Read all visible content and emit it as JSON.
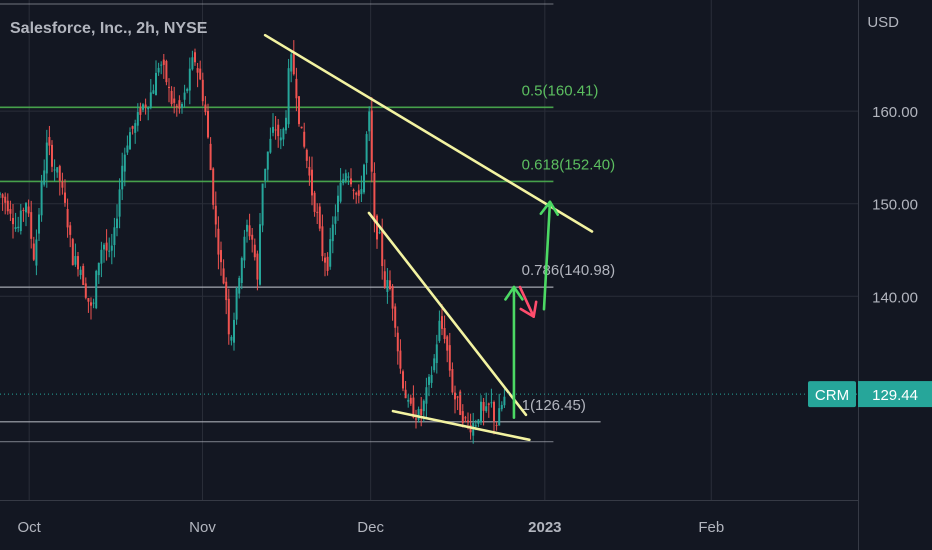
{
  "header": {
    "title": "Salesforce, Inc., 2h, NYSE",
    "currency": "USD"
  },
  "colors": {
    "background": "#131722",
    "grid": "#2a2e39",
    "up": "#26a69a",
    "down": "#ef5350",
    "fib_green": "#4caf50",
    "trend_yellow": "#f3f3a1",
    "arrow_green": "#4cd964",
    "arrow_red": "#ff4d6d"
  },
  "chart_data": {
    "type": "candlestick",
    "title": "Salesforce, Inc., 2h, NYSE",
    "ylim": [
      118,
      172
    ],
    "y_ticks": [
      140,
      150,
      160
    ],
    "y_tick_labels": [
      "140.00",
      "150.00",
      "160.00"
    ],
    "x_ticks": [
      {
        "label": "Oct",
        "pos": 0.034
      },
      {
        "label": "Nov",
        "pos": 0.236
      },
      {
        "label": "Dec",
        "pos": 0.432
      },
      {
        "label": "2023",
        "pos": 0.635
      },
      {
        "label": "Feb",
        "pos": 0.829
      }
    ],
    "last_price": {
      "symbol": "CRM",
      "value": "129.44"
    },
    "fib_levels": [
      {
        "label": "0.5(160.41)",
        "value": 160.41,
        "color": "#4caf50"
      },
      {
        "label": "0.618(152.40)",
        "value": 152.4,
        "color": "#4caf50"
      },
      {
        "label": "0.786(140.98)",
        "value": 140.98,
        "color": "#b2b5be"
      },
      {
        "label": "1(126.45)",
        "value": 126.45,
        "color": "#b2b5be"
      }
    ],
    "price_path": [
      [
        0.0,
        151.0
      ],
      [
        0.012,
        149.5
      ],
      [
        0.02,
        147.0
      ],
      [
        0.03,
        150.5
      ],
      [
        0.04,
        144.0
      ],
      [
        0.048,
        151.5
      ],
      [
        0.055,
        156.5
      ],
      [
        0.063,
        154.0
      ],
      [
        0.07,
        152.5
      ],
      [
        0.078,
        148.5
      ],
      [
        0.085,
        144.0
      ],
      [
        0.093,
        143.5
      ],
      [
        0.1,
        140.5
      ],
      [
        0.108,
        138.0
      ],
      [
        0.113,
        143.0
      ],
      [
        0.12,
        146.0
      ],
      [
        0.128,
        144.0
      ],
      [
        0.134,
        147.0
      ],
      [
        0.142,
        154.0
      ],
      [
        0.15,
        157.5
      ],
      [
        0.158,
        158.5
      ],
      [
        0.165,
        160.5
      ],
      [
        0.172,
        161.0
      ],
      [
        0.18,
        163.0
      ],
      [
        0.186,
        165.5
      ],
      [
        0.192,
        164.0
      ],
      [
        0.2,
        161.0
      ],
      [
        0.21,
        160.0
      ],
      [
        0.218,
        162.5
      ],
      [
        0.226,
        166.0
      ],
      [
        0.234,
        163.0
      ],
      [
        0.24,
        159.5
      ],
      [
        0.247,
        152.0
      ],
      [
        0.252,
        147.0
      ],
      [
        0.258,
        143.0
      ],
      [
        0.263,
        140.5
      ],
      [
        0.268,
        135.0
      ],
      [
        0.273,
        138.0
      ],
      [
        0.28,
        143.5
      ],
      [
        0.288,
        147.5
      ],
      [
        0.295,
        146.0
      ],
      [
        0.3,
        141.5
      ],
      [
        0.305,
        152.0
      ],
      [
        0.312,
        155.5
      ],
      [
        0.32,
        158.5
      ],
      [
        0.328,
        156.5
      ],
      [
        0.333,
        159.5
      ],
      [
        0.338,
        166.0
      ],
      [
        0.344,
        163.5
      ],
      [
        0.35,
        158.0
      ],
      [
        0.357,
        155.0
      ],
      [
        0.364,
        151.0
      ],
      [
        0.37,
        148.5
      ],
      [
        0.376,
        144.5
      ],
      [
        0.382,
        143.5
      ],
      [
        0.388,
        147.5
      ],
      [
        0.396,
        151.5
      ],
      [
        0.404,
        154.0
      ],
      [
        0.412,
        152.0
      ],
      [
        0.418,
        150.0
      ],
      [
        0.424,
        154.0
      ],
      [
        0.43,
        160.0
      ],
      [
        0.436,
        147.5
      ],
      [
        0.442,
        146.5
      ],
      [
        0.448,
        141.5
      ],
      [
        0.454,
        141.0
      ],
      [
        0.46,
        138.0
      ],
      [
        0.465,
        133.0
      ],
      [
        0.47,
        130.5
      ],
      [
        0.476,
        128.0
      ],
      [
        0.483,
        127.5
      ],
      [
        0.49,
        127.0
      ],
      [
        0.497,
        129.5
      ],
      [
        0.505,
        132.5
      ],
      [
        0.512,
        137.0
      ],
      [
        0.518,
        136.0
      ],
      [
        0.523,
        133.0
      ],
      [
        0.528,
        129.5
      ],
      [
        0.535,
        128.0
      ],
      [
        0.542,
        126.5
      ],
      [
        0.548,
        126.0
      ],
      [
        0.555,
        126.5
      ],
      [
        0.56,
        128.0
      ],
      [
        0.565,
        127.0
      ],
      [
        0.572,
        128.5
      ],
      [
        0.578,
        126.0
      ],
      [
        0.584,
        128.0
      ],
      [
        0.59,
        129.4
      ]
    ],
    "trendlines": [
      {
        "from": [
          0.309,
          168.2
        ],
        "to": [
          0.69,
          147.0
        ],
        "color": "#f3f3a1"
      },
      {
        "from": [
          0.43,
          149.0
        ],
        "to": [
          0.613,
          127.2
        ],
        "color": "#f3f3a1"
      },
      {
        "from": [
          0.458,
          127.6
        ],
        "to": [
          0.617,
          124.5
        ],
        "color": "#f3f3a1"
      }
    ],
    "arrows": [
      {
        "path": [
          [
            0.599,
            126.9
          ],
          [
            0.599,
            141.0
          ]
        ],
        "color": "#4cd964"
      },
      {
        "path": [
          [
            0.606,
            141.0
          ],
          [
            0.622,
            137.8
          ]
        ],
        "color": "#ff4d6d"
      },
      {
        "path": [
          [
            0.634,
            138.6
          ],
          [
            0.641,
            150.2
          ]
        ],
        "color": "#4cd964"
      }
    ]
  }
}
